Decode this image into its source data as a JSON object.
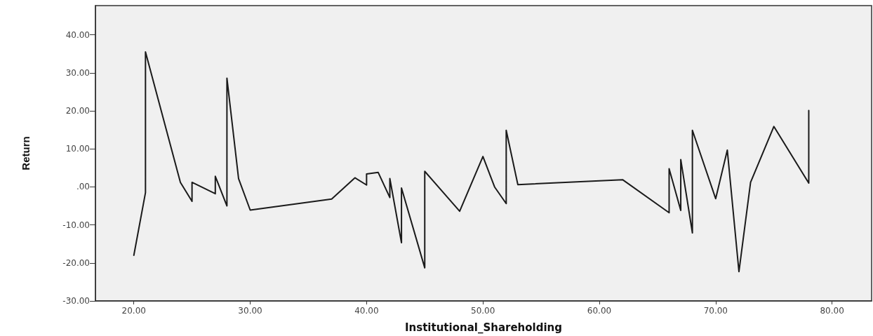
{
  "chart_data": {
    "type": "line",
    "xlabel": "Institutional_Shareholding",
    "ylabel": "Return",
    "x": [
      20,
      21,
      21,
      24,
      25,
      25,
      27,
      27,
      28,
      28,
      29,
      30,
      37,
      39,
      40,
      40,
      41,
      42,
      42,
      43,
      43,
      45,
      45,
      48,
      50,
      51,
      52,
      52,
      53,
      62,
      66,
      66,
      67,
      67,
      68,
      68,
      70,
      71,
      72,
      73,
      75,
      78,
      78
    ],
    "series": [
      {
        "color": "#1a1a1a",
        "values": [
          -18,
          -1.5,
          35.5,
          1.2,
          -3.8,
          1.2,
          -1.8,
          2.8,
          -5,
          28.6,
          2.2,
          -6.1,
          -3.2,
          2.4,
          0.5,
          3.4,
          3.8,
          -2.8,
          2.2,
          -14.7,
          -0.3,
          -21.3,
          4.1,
          -6.4,
          8,
          0,
          -4.4,
          14.9,
          0.6,
          1.9,
          -6.8,
          4.8,
          -6.2,
          7.2,
          -12.1,
          14.9,
          -3.1,
          9.7,
          -22.3,
          1.2,
          15.9,
          1,
          20.1
        ]
      }
    ],
    "xlim": [
      16.7,
      83.4
    ],
    "ylim": [
      -30,
      47.7
    ],
    "xticks": [
      {
        "value": 20,
        "label": "20.00"
      },
      {
        "value": 30,
        "label": "30.00"
      },
      {
        "value": 40,
        "label": "40.00"
      },
      {
        "value": 50,
        "label": "50.00"
      },
      {
        "value": 60,
        "label": "60.00"
      },
      {
        "value": 70,
        "label": "70.00"
      },
      {
        "value": 80,
        "label": "80.00"
      }
    ],
    "yticks": [
      {
        "value": -30,
        "label": "-30.00"
      },
      {
        "value": -20,
        "label": "-20.00"
      },
      {
        "value": -10,
        "label": "-10.00"
      },
      {
        "value": 0,
        "label": ".00"
      },
      {
        "value": 10,
        "label": "10.00"
      },
      {
        "value": 20,
        "label": "20.00"
      },
      {
        "value": 30,
        "label": "30.00"
      },
      {
        "value": 40,
        "label": "40.00"
      }
    ],
    "grid": false,
    "marker": "none",
    "line_style": "solid"
  }
}
